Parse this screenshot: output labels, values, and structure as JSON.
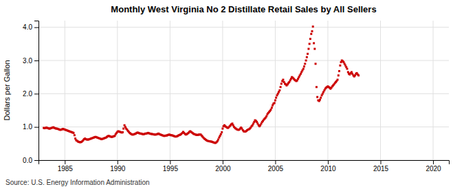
{
  "chart_data": {
    "type": "scatter",
    "title": "Monthly West Virginia No 2 Distillate Retail Sales by All Sellers",
    "ylabel": "Dollars per Gallon",
    "annotations": [
      "Source: U.S. Energy Information Administration"
    ],
    "color": "#cc0000",
    "marker": "square",
    "grid": true,
    "xlim": [
      1982.5,
      2021.5
    ],
    "xticks": [
      1985,
      1990,
      1995,
      2000,
      2005,
      2010,
      2015,
      2020
    ],
    "ylim": [
      0.0,
      4.2
    ],
    "yticks": [
      {
        "value": 0.0,
        "label": "0.0"
      },
      {
        "value": 1.0,
        "label": "1.0"
      },
      {
        "value": 2.0,
        "label": "2.0"
      },
      {
        "value": 3.0,
        "label": "3.0"
      },
      {
        "value": 4.0,
        "label": "4.0"
      }
    ],
    "x": [
      1983.0,
      1983.08,
      1983.17,
      1983.25,
      1983.33,
      1983.42,
      1983.5,
      1983.58,
      1983.67,
      1983.75,
      1983.83,
      1983.92,
      1984.0,
      1984.08,
      1984.17,
      1984.25,
      1984.33,
      1984.42,
      1984.5,
      1984.58,
      1984.67,
      1984.75,
      1984.83,
      1984.92,
      1985.0,
      1985.08,
      1985.17,
      1985.25,
      1985.33,
      1985.42,
      1985.5,
      1985.58,
      1985.67,
      1985.75,
      1985.83,
      1985.92,
      1986.0,
      1986.08,
      1986.17,
      1986.25,
      1986.33,
      1986.42,
      1986.5,
      1986.58,
      1986.67,
      1986.75,
      1986.83,
      1986.92,
      1987.0,
      1987.08,
      1987.17,
      1987.25,
      1987.33,
      1987.42,
      1987.5,
      1987.58,
      1987.67,
      1987.75,
      1987.83,
      1987.92,
      1988.0,
      1988.08,
      1988.17,
      1988.25,
      1988.33,
      1988.42,
      1988.5,
      1988.58,
      1988.67,
      1988.75,
      1988.83,
      1988.92,
      1989.0,
      1989.08,
      1989.17,
      1989.25,
      1989.33,
      1989.42,
      1989.5,
      1989.58,
      1989.67,
      1989.75,
      1989.83,
      1989.92,
      1990.0,
      1990.08,
      1990.17,
      1990.25,
      1990.33,
      1990.42,
      1990.5,
      1990.58,
      1990.67,
      1990.75,
      1990.83,
      1990.92,
      1991.0,
      1991.08,
      1991.17,
      1991.25,
      1991.33,
      1991.42,
      1991.5,
      1991.58,
      1991.67,
      1991.75,
      1991.83,
      1991.92,
      1992.0,
      1992.08,
      1992.17,
      1992.25,
      1992.33,
      1992.42,
      1992.5,
      1992.58,
      1992.67,
      1992.75,
      1992.83,
      1992.92,
      1993.0,
      1993.08,
      1993.17,
      1993.25,
      1993.33,
      1993.42,
      1993.5,
      1993.58,
      1993.67,
      1993.75,
      1993.83,
      1993.92,
      1994.0,
      1994.08,
      1994.17,
      1994.25,
      1994.33,
      1994.42,
      1994.5,
      1994.58,
      1994.67,
      1994.75,
      1994.83,
      1994.92,
      1995.0,
      1995.08,
      1995.17,
      1995.25,
      1995.33,
      1995.42,
      1995.5,
      1995.58,
      1995.67,
      1995.75,
      1995.83,
      1995.92,
      1996.0,
      1996.08,
      1996.17,
      1996.25,
      1996.33,
      1996.42,
      1996.5,
      1996.58,
      1996.67,
      1996.75,
      1996.83,
      1996.92,
      1997.0,
      1997.08,
      1997.17,
      1997.25,
      1997.33,
      1997.42,
      1997.5,
      1997.58,
      1997.67,
      1997.75,
      1997.83,
      1997.92,
      1998.0,
      1998.08,
      1998.17,
      1998.25,
      1998.33,
      1998.42,
      1998.5,
      1998.58,
      1998.67,
      1998.75,
      1998.83,
      1998.92,
      1999.0,
      1999.08,
      1999.17,
      1999.25,
      1999.33,
      1999.42,
      1999.5,
      1999.58,
      1999.67,
      1999.75,
      1999.83,
      1999.92,
      2000.0,
      2000.08,
      2000.17,
      2000.25,
      2000.33,
      2000.42,
      2000.5,
      2000.58,
      2000.67,
      2000.75,
      2000.83,
      2000.92,
      2001.0,
      2001.08,
      2001.17,
      2001.25,
      2001.33,
      2001.42,
      2001.5,
      2001.58,
      2001.67,
      2001.75,
      2001.83,
      2001.92,
      2002.0,
      2002.08,
      2002.17,
      2002.25,
      2002.33,
      2002.42,
      2002.5,
      2002.58,
      2002.67,
      2002.75,
      2002.83,
      2002.92,
      2003.0,
      2003.08,
      2003.17,
      2003.25,
      2003.33,
      2003.42,
      2003.5,
      2003.58,
      2003.67,
      2003.75,
      2003.83,
      2003.92,
      2004.0,
      2004.08,
      2004.17,
      2004.25,
      2004.33,
      2004.42,
      2004.5,
      2004.58,
      2004.67,
      2004.75,
      2004.83,
      2004.92,
      2005.0,
      2005.08,
      2005.17,
      2005.25,
      2005.33,
      2005.42,
      2005.5,
      2005.58,
      2005.67,
      2005.75,
      2005.83,
      2005.92,
      2006.0,
      2006.08,
      2006.17,
      2006.25,
      2006.33,
      2006.42,
      2006.5,
      2006.58,
      2006.67,
      2006.75,
      2006.83,
      2006.92,
      2007.0,
      2007.08,
      2007.17,
      2007.25,
      2007.33,
      2007.42,
      2007.5,
      2007.58,
      2007.67,
      2007.75,
      2007.83,
      2007.92,
      2008.0,
      2008.08,
      2008.17,
      2008.25,
      2008.33,
      2008.42,
      2008.5,
      2008.58,
      2008.67,
      2008.75,
      2008.83,
      2008.92,
      2009.0,
      2009.08,
      2009.17,
      2009.25,
      2009.33,
      2009.42,
      2009.5,
      2009.58,
      2009.67,
      2009.75,
      2009.83,
      2009.92,
      2010.0,
      2010.08,
      2010.17,
      2010.25,
      2010.33,
      2010.42,
      2010.5,
      2010.58,
      2010.67,
      2010.75,
      2010.83,
      2010.92,
      2011.0,
      2011.08,
      2011.17,
      2011.25,
      2011.33,
      2011.42,
      2011.5,
      2011.58,
      2011.67,
      2011.75,
      2011.83,
      2011.92,
      2012.0,
      2012.08,
      2012.17,
      2012.25,
      2012.33,
      2012.42,
      2012.5,
      2012.58,
      2012.67,
      2012.75,
      2012.83,
      2012.92
    ],
    "values": [
      0.97,
      0.96,
      0.97,
      0.98,
      0.97,
      0.96,
      0.95,
      0.95,
      0.96,
      0.97,
      0.98,
      0.99,
      0.97,
      0.96,
      0.95,
      0.95,
      0.94,
      0.93,
      0.92,
      0.91,
      0.92,
      0.93,
      0.94,
      0.93,
      0.92,
      0.91,
      0.9,
      0.89,
      0.88,
      0.87,
      0.86,
      0.85,
      0.84,
      0.83,
      0.82,
      0.75,
      0.65,
      0.6,
      0.58,
      0.56,
      0.55,
      0.54,
      0.54,
      0.55,
      0.57,
      0.6,
      0.63,
      0.65,
      0.63,
      0.62,
      0.62,
      0.62,
      0.63,
      0.64,
      0.65,
      0.66,
      0.67,
      0.68,
      0.69,
      0.7,
      0.69,
      0.68,
      0.67,
      0.66,
      0.65,
      0.64,
      0.63,
      0.64,
      0.65,
      0.66,
      0.67,
      0.68,
      0.7,
      0.72,
      0.73,
      0.72,
      0.71,
      0.7,
      0.7,
      0.71,
      0.72,
      0.73,
      0.78,
      0.82,
      0.85,
      0.87,
      0.86,
      0.85,
      0.84,
      0.83,
      0.84,
      0.95,
      1.05,
      1.0,
      0.95,
      0.92,
      0.88,
      0.85,
      0.82,
      0.8,
      0.78,
      0.77,
      0.77,
      0.78,
      0.79,
      0.8,
      0.82,
      0.83,
      0.82,
      0.81,
      0.8,
      0.8,
      0.79,
      0.78,
      0.78,
      0.79,
      0.8,
      0.8,
      0.81,
      0.82,
      0.81,
      0.8,
      0.79,
      0.79,
      0.78,
      0.78,
      0.77,
      0.77,
      0.77,
      0.78,
      0.79,
      0.8,
      0.78,
      0.77,
      0.76,
      0.75,
      0.74,
      0.73,
      0.73,
      0.74,
      0.74,
      0.75,
      0.76,
      0.77,
      0.76,
      0.75,
      0.75,
      0.74,
      0.73,
      0.72,
      0.71,
      0.71,
      0.72,
      0.73,
      0.75,
      0.76,
      0.77,
      0.79,
      0.82,
      0.85,
      0.82,
      0.79,
      0.77,
      0.78,
      0.8,
      0.82,
      0.85,
      0.87,
      0.85,
      0.83,
      0.81,
      0.79,
      0.78,
      0.77,
      0.76,
      0.76,
      0.76,
      0.77,
      0.77,
      0.77,
      0.74,
      0.71,
      0.68,
      0.65,
      0.63,
      0.61,
      0.59,
      0.58,
      0.57,
      0.57,
      0.56,
      0.56,
      0.55,
      0.54,
      0.53,
      0.52,
      0.52,
      0.54,
      0.57,
      0.62,
      0.68,
      0.73,
      0.78,
      0.84,
      0.95,
      1.02,
      1.05,
      1.02,
      1.0,
      0.98,
      0.97,
      0.99,
      1.02,
      1.05,
      1.08,
      1.1,
      1.05,
      1.0,
      0.97,
      0.95,
      0.93,
      0.92,
      0.91,
      0.92,
      0.95,
      0.98,
      0.95,
      0.9,
      0.87,
      0.86,
      0.86,
      0.88,
      0.9,
      0.92,
      0.93,
      0.95,
      0.98,
      1.02,
      1.05,
      1.1,
      1.15,
      1.2,
      1.18,
      1.15,
      1.1,
      1.05,
      1.02,
      1.05,
      1.1,
      1.15,
      1.18,
      1.22,
      1.25,
      1.28,
      1.32,
      1.38,
      1.42,
      1.45,
      1.48,
      1.52,
      1.58,
      1.65,
      1.7,
      1.72,
      1.8,
      1.88,
      1.95,
      2.0,
      2.05,
      2.1,
      2.2,
      2.3,
      2.38,
      2.42,
      2.35,
      2.3,
      2.28,
      2.25,
      2.28,
      2.32,
      2.35,
      2.4,
      2.45,
      2.5,
      2.48,
      2.45,
      2.42,
      2.4,
      2.38,
      2.4,
      2.45,
      2.5,
      2.55,
      2.6,
      2.65,
      2.7,
      2.75,
      2.82,
      2.9,
      3.0,
      3.1,
      3.2,
      3.35,
      3.5,
      3.65,
      3.8,
      3.88,
      4.02,
      3.52,
      3.35,
      2.9,
      2.2,
      1.9,
      1.8,
      1.78,
      1.82,
      1.88,
      1.95,
      2.0,
      2.05,
      2.1,
      2.15,
      2.18,
      2.2,
      2.22,
      2.2,
      2.18,
      2.15,
      2.18,
      2.22,
      2.25,
      2.28,
      2.32,
      2.35,
      2.38,
      2.42,
      2.55,
      2.68,
      2.85,
      2.95,
      3.0,
      2.98,
      2.95,
      2.9,
      2.85,
      2.8,
      2.75,
      2.65,
      2.6,
      2.58,
      2.62,
      2.65,
      2.6,
      2.55,
      2.52,
      2.55,
      2.6,
      2.62,
      2.58,
      2.55
    ]
  }
}
